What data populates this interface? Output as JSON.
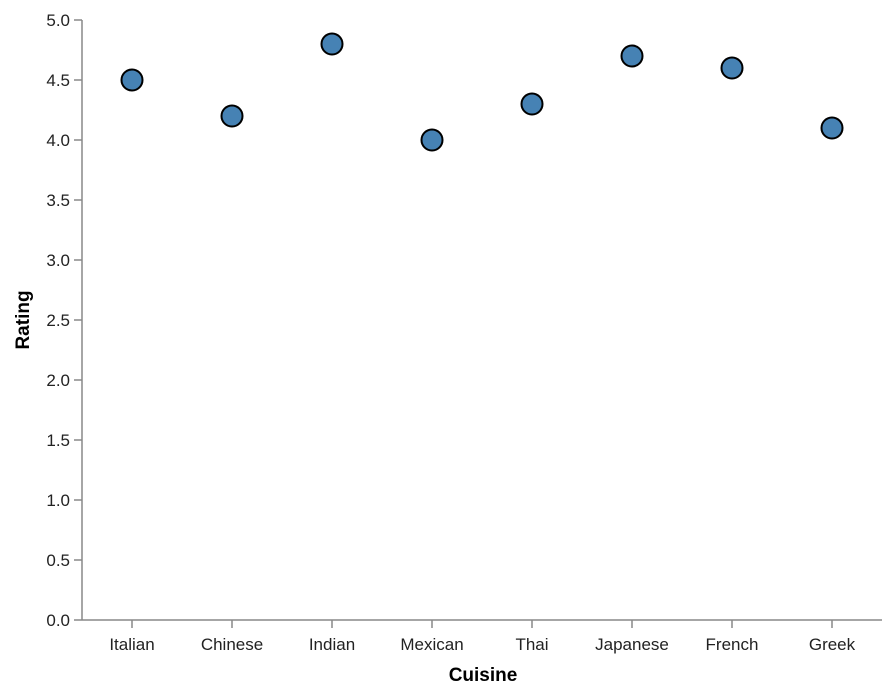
{
  "chart_data": {
    "type": "scatter",
    "categories": [
      "Italian",
      "Chinese",
      "Indian",
      "Mexican",
      "Thai",
      "Japanese",
      "French",
      "Greek"
    ],
    "values": [
      4.5,
      4.2,
      4.8,
      4.0,
      4.3,
      4.7,
      4.6,
      4.1
    ],
    "xlabel": "Cuisine",
    "ylabel": "Rating",
    "ylim": [
      0,
      5
    ],
    "yticks": [
      "0.0",
      "0.5",
      "1.0",
      "1.5",
      "2.0",
      "2.5",
      "3.0",
      "3.5",
      "4.0",
      "4.5",
      "5.0"
    ],
    "grid": false,
    "colors": {
      "point_fill": "#4682b4",
      "point_stroke": "#000000",
      "axis": "#888888"
    }
  }
}
